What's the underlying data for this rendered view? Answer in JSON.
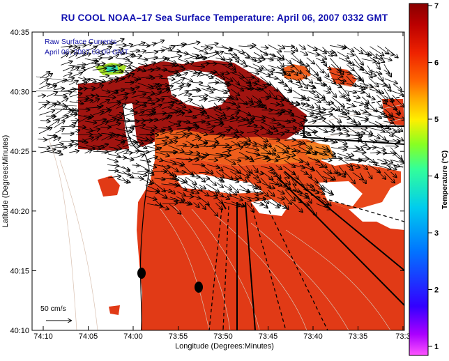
{
  "title": "RU COOL  NOAA–17  Sea Surface Temperature:  April 06, 2007 0332 GMT",
  "legend_box": {
    "line1": "Raw Surface Currents",
    "line2": "April 06, 2007 03:00 GMT"
  },
  "axes": {
    "xlabel": "Longitude (Degrees:Minutes)",
    "ylabel": "Latitude (Degrees:Minutes)",
    "xticks": [
      "74:10",
      "74:05",
      "74:00",
      "73:55",
      "73:50",
      "73:45",
      "73:40",
      "73:35",
      "73:3"
    ],
    "yticks": [
      "40:35",
      "40:30",
      "40:25",
      "40:20",
      "40:15",
      "40:10"
    ]
  },
  "scale_arrow_label": "50 cm/s",
  "colorbar": {
    "label": "Temperature (°C)",
    "min": 1,
    "max": 7,
    "ticks": [
      "7",
      "6",
      "5",
      "4",
      "3",
      "2",
      "1"
    ],
    "colors": [
      "#ff55ff",
      "#aa00ff",
      "#3300ff",
      "#0077ff",
      "#00ccee",
      "#33ff99",
      "#88ff22",
      "#ffee00",
      "#ffaa00",
      "#ff6600",
      "#ee2200",
      "#bb0000",
      "#880000"
    ]
  },
  "colors": {
    "title": "#1010b0",
    "sst_main": "#e13a16",
    "sst_dark": "#a11410",
    "sst_orange": "#f57520",
    "land": "#ffffff"
  }
}
